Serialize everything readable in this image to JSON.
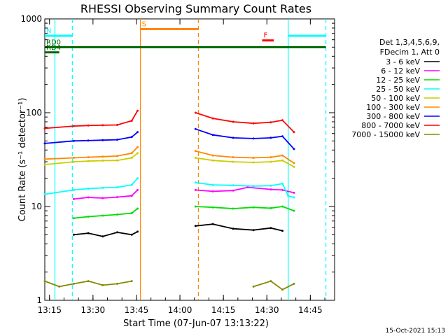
{
  "chart_data": {
    "type": "line",
    "title": "RHESSI Observing Summary Count Rates",
    "xlabel": "Start Time (07-Jun-07 13:13:22)",
    "ylabel": "Count Rate (s⁻¹ detector⁻¹)",
    "yscale": "log",
    "ylim": [
      1,
      1000
    ],
    "xlim_minutes": [
      0,
      100
    ],
    "x_tick_labels": [
      "13:15",
      "13:30",
      "13:45",
      "14:00",
      "14:15",
      "14:30",
      "14:45"
    ],
    "x_tick_minutes": [
      1.63,
      16.63,
      31.63,
      46.63,
      61.63,
      76.63,
      91.63
    ],
    "y_tick_labels": [
      "1",
      "10",
      "100",
      "1000"
    ],
    "y_tick_values": [
      1,
      10,
      100,
      1000
    ],
    "legend_header": [
      "Det 1,3,4,5,6,9,",
      "FDecim 1, Att 0"
    ],
    "legend_position": "right",
    "footer_date": "15-Oct-2021 15:13",
    "series": [
      {
        "name": "3 - 6 keV",
        "color": "#000000",
        "points": [
          [
            10,
            5
          ],
          [
            15,
            5.2
          ],
          [
            20,
            4.8
          ],
          [
            25,
            5.3
          ],
          [
            30,
            5
          ],
          [
            32,
            5.4
          ],
          [
            52,
            6.2
          ],
          [
            58,
            6.5
          ],
          [
            65,
            5.8
          ],
          [
            72,
            5.6
          ],
          [
            78,
            5.9
          ],
          [
            82,
            5.5
          ]
        ]
      },
      {
        "name": "6 - 12 keV",
        "color": "#ff00ff",
        "points": [
          [
            10,
            12
          ],
          [
            15,
            12.5
          ],
          [
            20,
            12.3
          ],
          [
            25,
            12.6
          ],
          [
            30,
            13
          ],
          [
            32,
            15
          ],
          [
            52,
            15
          ],
          [
            58,
            14.5
          ],
          [
            65,
            14.8
          ],
          [
            70,
            16
          ],
          [
            78,
            15.2
          ],
          [
            82,
            15
          ],
          [
            86,
            14
          ]
        ]
      },
      {
        "name": "12 - 25 keV",
        "color": "#00dd00",
        "points": [
          [
            10,
            7.5
          ],
          [
            15,
            7.8
          ],
          [
            20,
            8
          ],
          [
            25,
            8.2
          ],
          [
            30,
            8.5
          ],
          [
            32,
            9.5
          ],
          [
            52,
            10
          ],
          [
            58,
            9.8
          ],
          [
            65,
            9.5
          ],
          [
            72,
            9.8
          ],
          [
            78,
            9.6
          ],
          [
            82,
            10
          ],
          [
            86,
            9
          ]
        ]
      },
      {
        "name": "25 - 50 keV",
        "color": "#00ffff",
        "points": [
          [
            0,
            13.5
          ],
          [
            10,
            15
          ],
          [
            15,
            15.5
          ],
          [
            20,
            15.8
          ],
          [
            25,
            16
          ],
          [
            30,
            17
          ],
          [
            32,
            20
          ],
          [
            52,
            18
          ],
          [
            58,
            17
          ],
          [
            65,
            16.8
          ],
          [
            72,
            16.5
          ],
          [
            78,
            16.7
          ],
          [
            82,
            17.5
          ],
          [
            84,
            13
          ],
          [
            86,
            12.5
          ]
        ]
      },
      {
        "name": "50 - 100 keV",
        "color": "#cccc00",
        "points": [
          [
            0,
            28
          ],
          [
            10,
            30
          ],
          [
            15,
            30.5
          ],
          [
            20,
            30.8
          ],
          [
            25,
            31
          ],
          [
            30,
            33
          ],
          [
            32,
            37
          ],
          [
            52,
            33
          ],
          [
            58,
            31
          ],
          [
            65,
            30
          ],
          [
            72,
            29.5
          ],
          [
            78,
            30
          ],
          [
            82,
            31
          ],
          [
            86,
            26.5
          ]
        ]
      },
      {
        "name": "100 - 300 keV",
        "color": "#ff8800",
        "points": [
          [
            0,
            32
          ],
          [
            10,
            33
          ],
          [
            15,
            33.5
          ],
          [
            20,
            34
          ],
          [
            25,
            34.5
          ],
          [
            30,
            37
          ],
          [
            32,
            43
          ],
          [
            52,
            39
          ],
          [
            58,
            35
          ],
          [
            65,
            33.5
          ],
          [
            72,
            33
          ],
          [
            78,
            33.5
          ],
          [
            82,
            35
          ],
          [
            86,
            29
          ]
        ]
      },
      {
        "name": "300 - 800 keV",
        "color": "#0000ff",
        "points": [
          [
            0,
            47
          ],
          [
            10,
            50
          ],
          [
            15,
            50.5
          ],
          [
            20,
            51
          ],
          [
            25,
            51.5
          ],
          [
            30,
            55
          ],
          [
            32,
            62
          ],
          [
            52,
            67
          ],
          [
            58,
            58
          ],
          [
            65,
            54
          ],
          [
            72,
            53
          ],
          [
            78,
            54
          ],
          [
            82,
            56
          ],
          [
            86,
            41
          ]
        ]
      },
      {
        "name": "800 - 7000 keV",
        "color": "#ff0000",
        "points": [
          [
            0,
            68
          ],
          [
            10,
            72
          ],
          [
            15,
            73
          ],
          [
            20,
            73.5
          ],
          [
            25,
            74
          ],
          [
            30,
            82
          ],
          [
            32,
            105
          ],
          [
            52,
            100
          ],
          [
            58,
            87
          ],
          [
            65,
            80
          ],
          [
            72,
            77
          ],
          [
            78,
            79
          ],
          [
            82,
            83
          ],
          [
            86,
            62
          ]
        ]
      },
      {
        "name": "7000 - 15000 keV",
        "color": "#888800",
        "points": [
          [
            0,
            1.6
          ],
          [
            5,
            1.4
          ],
          [
            10,
            1.5
          ],
          [
            15,
            1.6
          ],
          [
            20,
            1.45
          ],
          [
            25,
            1.5
          ],
          [
            30,
            1.6
          ],
          [
            72,
            1.4
          ],
          [
            78,
            1.6
          ],
          [
            82,
            1.3
          ],
          [
            86,
            1.5
          ]
        ]
      }
    ],
    "flags": [
      {
        "label": "N",
        "color": "#00ffff",
        "start": 0,
        "end": 9.5,
        "level": 660
      },
      {
        "label": "S",
        "color": "#ff8800",
        "start": 33,
        "end": 53,
        "level": 780
      },
      {
        "label": "F",
        "color": "#ff0000",
        "start": 75,
        "end": 79,
        "level": 590
      },
      {
        "label": "RD0",
        "color": "#006600",
        "start": 0,
        "end": 97,
        "level": 500
      },
      {
        "label": "RD4",
        "color": "#006600",
        "start": 0,
        "end": 5,
        "level": 440
      },
      {
        "label": "",
        "color": "#00ffff",
        "start": 84,
        "end": 97,
        "level": 660
      }
    ],
    "vertical_markers": [
      {
        "minute": 3.5,
        "color": "#00ffff",
        "style": "solid"
      },
      {
        "minute": 9.5,
        "color": "#00ffff",
        "style": "dashed"
      },
      {
        "minute": 33,
        "color": "#ff8800",
        "style": "solid"
      },
      {
        "minute": 53,
        "color": "#ff8800",
        "style": "dashed"
      },
      {
        "minute": 84,
        "color": "#00ffff",
        "style": "solid"
      },
      {
        "minute": 97,
        "color": "#00ffff",
        "style": "dashed"
      }
    ],
    "data_gap_minutes": [
      33,
      52
    ]
  }
}
